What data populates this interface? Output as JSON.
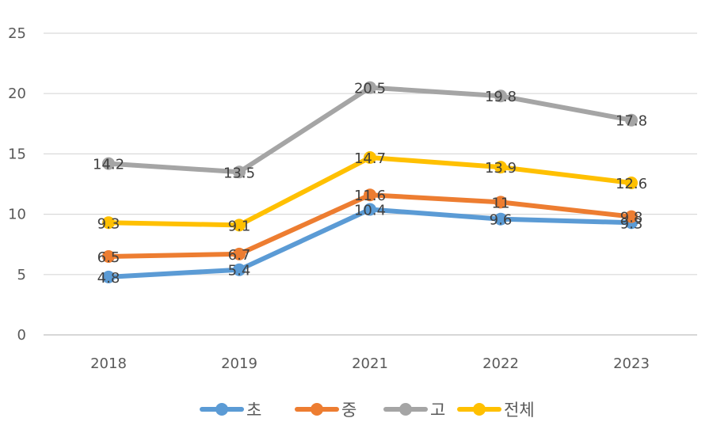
{
  "chart_data": {
    "type": "line",
    "title": "",
    "xlabel": "",
    "ylabel": "",
    "categories": [
      "2018",
      "2019",
      "2021",
      "2022",
      "2023"
    ],
    "ylim": [
      0,
      25
    ],
    "yticks": [
      "0",
      "5",
      "10",
      "15",
      "20",
      "25"
    ],
    "grid": true,
    "legend": "bottom",
    "series": [
      {
        "name": "초",
        "color": "#5b9bd5",
        "values": [
          4.8,
          5.4,
          10.4,
          9.6,
          9.3
        ],
        "labels": [
          "4.8",
          "5.4",
          "10.4",
          "9.6",
          "9.3"
        ]
      },
      {
        "name": "중",
        "color": "#ed7d31",
        "values": [
          6.5,
          6.7,
          11.6,
          11,
          9.8
        ],
        "labels": [
          "6.5",
          "6.7",
          "11.6",
          "11",
          "9.8"
        ]
      },
      {
        "name": "고",
        "color": "#a5a5a5",
        "values": [
          14.2,
          13.5,
          20.5,
          19.8,
          17.8
        ],
        "labels": [
          "14.2",
          "13.5",
          "20.5",
          "19.8",
          "17.8"
        ]
      },
      {
        "name": "전체",
        "color": "#ffc000",
        "values": [
          9.3,
          9.1,
          14.7,
          13.9,
          12.6
        ],
        "labels": [
          "9.3",
          "9.1",
          "14.7",
          "13.9",
          "12.6"
        ]
      }
    ]
  }
}
